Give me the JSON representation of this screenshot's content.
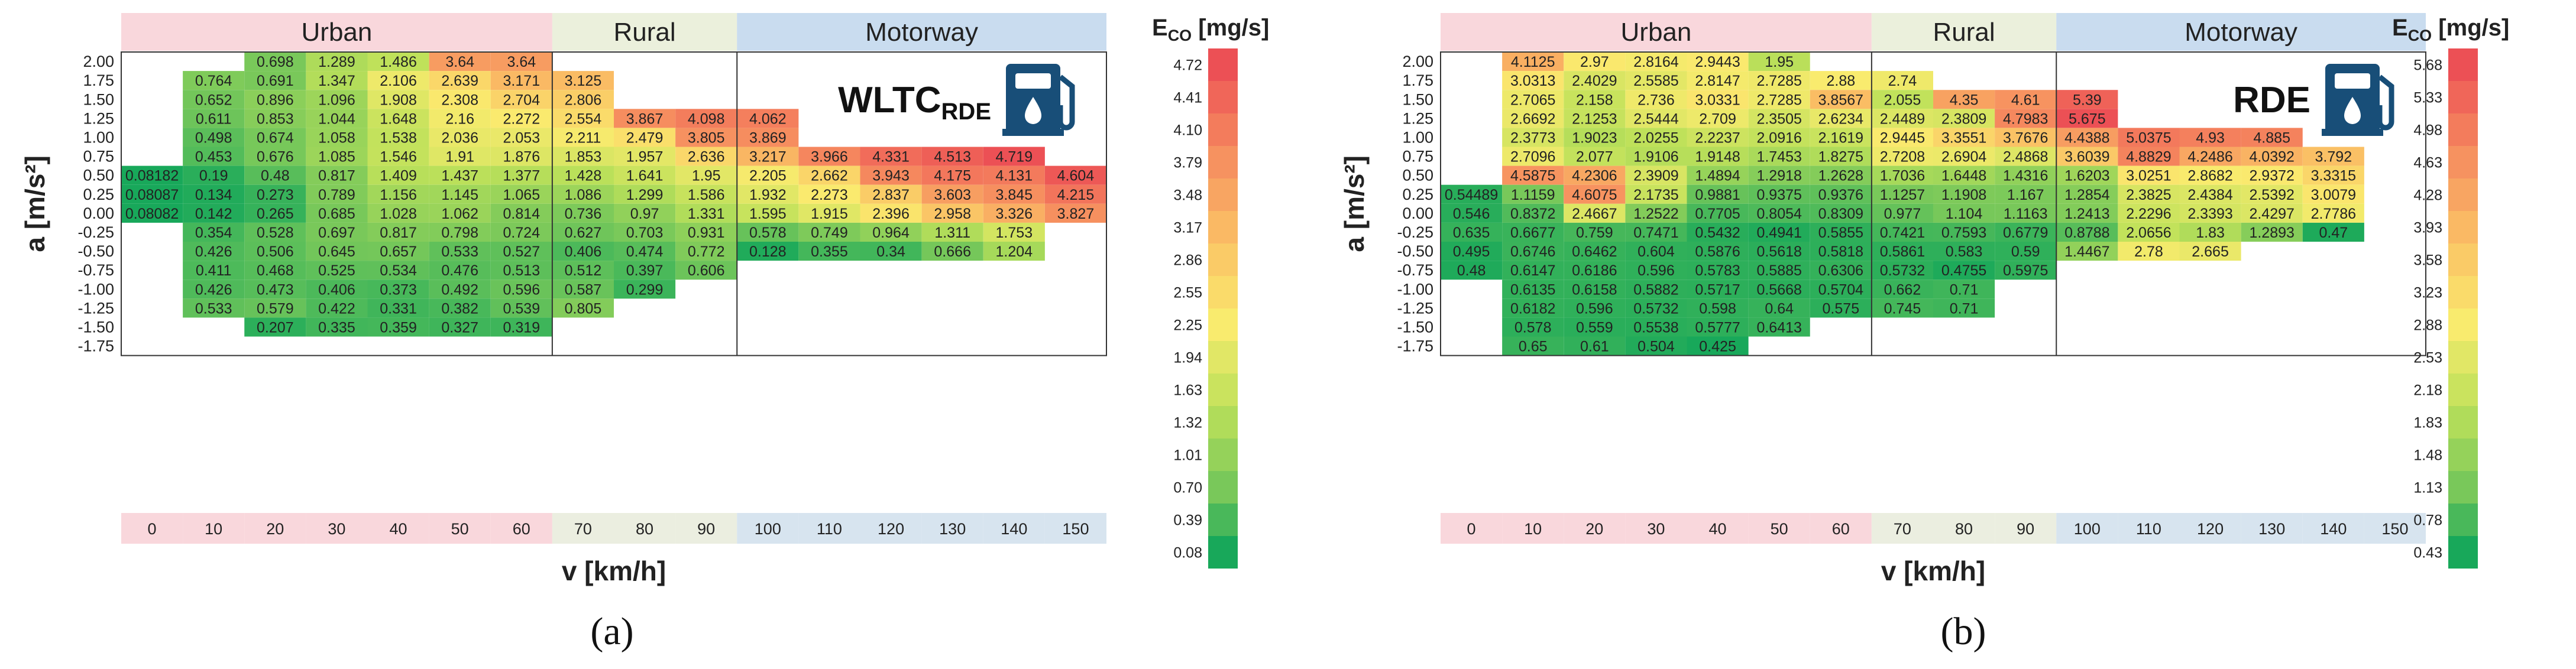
{
  "chart_data": [
    {
      "type": "heatmap",
      "panel_label": "(a)",
      "title": "WLTC",
      "title_subscript": "RDE",
      "icon": "fuel-pump-icon",
      "xlabel": "v [km/h]",
      "ylabel": "a [m/s²]",
      "colorbar_title": "E",
      "colorbar_title_subscript": "CO",
      "colorbar_title_unit": " [mg/s]",
      "colorbar_ticks": [
        "4.72",
        "4.41",
        "4.10",
        "3.79",
        "3.48",
        "3.17",
        "2.86",
        "2.55",
        "2.25",
        "1.94",
        "1.63",
        "1.32",
        "1.01",
        "0.70",
        "0.39",
        "0.08"
      ],
      "x_ticks": [
        "0",
        "10",
        "20",
        "30",
        "40",
        "50",
        "60",
        "70",
        "80",
        "90",
        "100",
        "110",
        "120",
        "130",
        "140",
        "150"
      ],
      "y_ticks": [
        "2.00",
        "1.75",
        "1.50",
        "1.25",
        "1.00",
        "0.75",
        "0.50",
        "0.25",
        "0.00",
        "-0.25",
        "-0.50",
        "-0.75",
        "-1.00",
        "-1.25",
        "-1.50",
        "-1.75"
      ],
      "regions": [
        {
          "label": "Urban",
          "start": 0,
          "end": 7
        },
        {
          "label": "Rural",
          "start": 7,
          "end": 10
        },
        {
          "label": "Motorway",
          "start": 10,
          "end": 16
        }
      ],
      "value_range": [
        0.08,
        4.72
      ],
      "grid": [
        [
          "",
          "",
          "0.698",
          "1.289",
          "1.486",
          "3.64",
          "3.64",
          "",
          "",
          "",
          "",
          "",
          "",
          "",
          "",
          ""
        ],
        [
          "",
          "0.764",
          "0.691",
          "1.347",
          "2.106",
          "2.639",
          "3.171",
          "3.125",
          "",
          "",
          "",
          "",
          "",
          "",
          "",
          ""
        ],
        [
          "",
          "0.652",
          "0.896",
          "1.096",
          "1.908",
          "2.308",
          "2.704",
          "2.806",
          "",
          "",
          "",
          "",
          "",
          "",
          "",
          ""
        ],
        [
          "",
          "0.611",
          "0.853",
          "1.044",
          "1.648",
          "2.16",
          "2.272",
          "2.554",
          "3.867",
          "4.098",
          "4.062",
          "",
          "",
          "",
          "",
          ""
        ],
        [
          "",
          "0.498",
          "0.674",
          "1.058",
          "1.538",
          "2.036",
          "2.053",
          "2.211",
          "2.479",
          "3.805",
          "3.869",
          "",
          "",
          "",
          "",
          ""
        ],
        [
          "",
          "0.453",
          "0.676",
          "1.085",
          "1.546",
          "1.91",
          "1.876",
          "1.853",
          "1.957",
          "2.636",
          "3.217",
          "3.966",
          "4.331",
          "4.513",
          "4.719",
          ""
        ],
        [
          "0.08182",
          "0.19",
          "0.48",
          "0.817",
          "1.409",
          "1.437",
          "1.377",
          "1.428",
          "1.641",
          "1.95",
          "2.205",
          "2.662",
          "3.943",
          "4.175",
          "4.131",
          "4.604"
        ],
        [
          "0.08087",
          "0.134",
          "0.273",
          "0.789",
          "1.156",
          "1.145",
          "1.065",
          "1.086",
          "1.299",
          "1.586",
          "1.932",
          "2.273",
          "2.837",
          "3.603",
          "3.845",
          "4.215"
        ],
        [
          "0.08082",
          "0.142",
          "0.265",
          "0.685",
          "1.028",
          "1.062",
          "0.814",
          "0.736",
          "0.97",
          "1.331",
          "1.595",
          "1.915",
          "2.396",
          "2.958",
          "3.326",
          "3.827"
        ],
        [
          "",
          "0.354",
          "0.528",
          "0.697",
          "0.817",
          "0.798",
          "0.724",
          "0.627",
          "0.703",
          "0.931",
          "0.578",
          "0.749",
          "0.964",
          "1.311",
          "1.753",
          ""
        ],
        [
          "",
          "0.426",
          "0.506",
          "0.645",
          "0.657",
          "0.533",
          "0.527",
          "0.406",
          "0.474",
          "0.772",
          "0.128",
          "0.355",
          "0.34",
          "0.666",
          "1.204",
          ""
        ],
        [
          "",
          "0.411",
          "0.468",
          "0.525",
          "0.534",
          "0.476",
          "0.513",
          "0.512",
          "0.397",
          "0.606",
          "",
          "",
          "",
          "",
          "",
          ""
        ],
        [
          "",
          "0.426",
          "0.473",
          "0.406",
          "0.373",
          "0.492",
          "0.596",
          "0.587",
          "0.299",
          "",
          "",
          "",
          "",
          "",
          "",
          ""
        ],
        [
          "",
          "0.533",
          "0.579",
          "0.422",
          "0.331",
          "0.382",
          "0.539",
          "0.805",
          "",
          "",
          "",
          "",
          "",
          "",
          "",
          ""
        ],
        [
          "",
          "",
          "0.207",
          "0.335",
          "0.359",
          "0.327",
          "0.319",
          "",
          "",
          "",
          "",
          "",
          "",
          "",
          "",
          ""
        ],
        [
          "",
          "",
          "",
          "",
          "",
          "",
          "",
          "",
          "",
          "",
          "",
          "",
          "",
          "",
          "",
          ""
        ]
      ]
    },
    {
      "type": "heatmap",
      "panel_label": "(b)",
      "title": "RDE",
      "title_subscript": "",
      "icon": "fuel-pump-icon",
      "xlabel": "v [km/h]",
      "ylabel": "a [m/s²]",
      "colorbar_title": "E",
      "colorbar_title_subscript": "CO",
      "colorbar_title_unit": " [mg/s]",
      "colorbar_ticks": [
        "5.68",
        "5.33",
        "4.98",
        "4.63",
        "4.28",
        "3.93",
        "3.58",
        "3.23",
        "2.88",
        "2.53",
        "2.18",
        "1.83",
        "1.48",
        "1.13",
        "0.78",
        "0.43"
      ],
      "x_ticks": [
        "0",
        "10",
        "20",
        "30",
        "40",
        "50",
        "60",
        "70",
        "80",
        "90",
        "100",
        "110",
        "120",
        "130",
        "140",
        "150"
      ],
      "y_ticks": [
        "2.00",
        "1.75",
        "1.50",
        "1.25",
        "1.00",
        "0.75",
        "0.50",
        "0.25",
        "0.00",
        "-0.25",
        "-0.50",
        "-0.75",
        "-1.00",
        "-1.25",
        "-1.50",
        "-1.75"
      ],
      "regions": [
        {
          "label": "Urban",
          "start": 0,
          "end": 7
        },
        {
          "label": "Rural",
          "start": 7,
          "end": 10
        },
        {
          "label": "Motorway",
          "start": 10,
          "end": 16
        }
      ],
      "value_range": [
        0.43,
        5.68
      ],
      "grid": [
        [
          "",
          "4.1125",
          "2.97",
          "2.8164",
          "2.9443",
          "1.95",
          "",
          "",
          "",
          "",
          "",
          "",
          "",
          "",
          "",
          ""
        ],
        [
          "",
          "3.0313",
          "2.4029",
          "2.5585",
          "2.8147",
          "2.7285",
          "2.88",
          "2.74",
          "",
          "",
          "",
          "",
          "",
          "",
          "",
          ""
        ],
        [
          "",
          "2.7065",
          "2.158",
          "2.736",
          "3.0331",
          "2.7285",
          "3.8567",
          "2.055",
          "4.35",
          "4.61",
          "5.39",
          "",
          "",
          "",
          "",
          ""
        ],
        [
          "",
          "2.6692",
          "2.1253",
          "2.5444",
          "2.709",
          "2.3505",
          "2.6234",
          "2.4489",
          "2.3809",
          "4.7983",
          "5.675",
          "",
          "",
          "",
          "",
          ""
        ],
        [
          "",
          "2.3773",
          "1.9023",
          "2.0255",
          "2.2237",
          "2.0916",
          "2.1619",
          "2.9445",
          "3.3551",
          "3.7676",
          "4.4388",
          "5.0375",
          "4.93",
          "4.885",
          ""
        ],
        [
          "",
          "2.7096",
          "2.077",
          "1.9106",
          "1.9148",
          "1.7453",
          "1.8275",
          "2.7208",
          "2.6904",
          "2.4868",
          "3.6039",
          "4.8829",
          "4.2486",
          "4.0392",
          "3.792",
          ""
        ],
        [
          "",
          "4.5875",
          "4.2306",
          "2.3909",
          "1.4894",
          "1.2918",
          "1.2628",
          "1.7036",
          "1.6448",
          "1.4316",
          "1.6203",
          "3.0251",
          "2.8682",
          "2.9372",
          "3.3315",
          ""
        ],
        [
          "0.54489",
          "1.1159",
          "4.6075",
          "2.1735",
          "0.9881",
          "0.9375",
          "0.9376",
          "1.1257",
          "1.1908",
          "1.167",
          "1.2854",
          "2.3825",
          "2.4384",
          "2.5392",
          "3.0079",
          ""
        ],
        [
          "0.546",
          "0.8372",
          "2.4667",
          "1.2522",
          "0.7705",
          "0.8054",
          "0.8309",
          "0.977",
          "1.104",
          "1.1163",
          "1.2413",
          "2.2296",
          "2.3393",
          "2.4297",
          "2.7786",
          ""
        ],
        [
          "0.635",
          "0.6677",
          "0.759",
          "0.7471",
          "0.5432",
          "0.4941",
          "0.5855",
          "0.7421",
          "0.7593",
          "0.6779",
          "0.8788",
          "2.0656",
          "1.83",
          "1.2893",
          "0.47",
          ""
        ],
        [
          "0.495",
          "0.6746",
          "0.6462",
          "0.604",
          "0.5876",
          "0.5618",
          "0.5818",
          "0.5861",
          "0.583",
          "0.59",
          "1.4467",
          "2.78",
          "2.665",
          "",
          "",
          ""
        ],
        [
          "0.48",
          "0.6147",
          "0.6186",
          "0.596",
          "0.5783",
          "0.5885",
          "0.6306",
          "0.5732",
          "0.4755",
          "0.5975",
          "",
          "",
          "",
          "",
          "",
          ""
        ],
        [
          "",
          "0.6135",
          "0.6158",
          "0.5882",
          "0.5717",
          "0.5668",
          "0.5704",
          "0.662",
          "0.71",
          "",
          "",
          "",
          "",
          "",
          "",
          ""
        ],
        [
          "",
          "0.6182",
          "0.596",
          "0.5732",
          "0.598",
          "0.64",
          "0.575",
          "0.745",
          "0.71",
          "",
          "",
          "",
          "",
          "",
          "",
          ""
        ],
        [
          "",
          "0.578",
          "0.559",
          "0.5538",
          "0.5777",
          "0.6413",
          "",
          "",
          "",
          "",
          "",
          "",
          "",
          "",
          "",
          ""
        ],
        [
          "",
          "0.65",
          "0.61",
          "0.504",
          "0.425",
          "",
          "",
          "",
          "",
          "",
          "",
          "",
          "",
          "",
          "",
          ""
        ]
      ]
    }
  ]
}
